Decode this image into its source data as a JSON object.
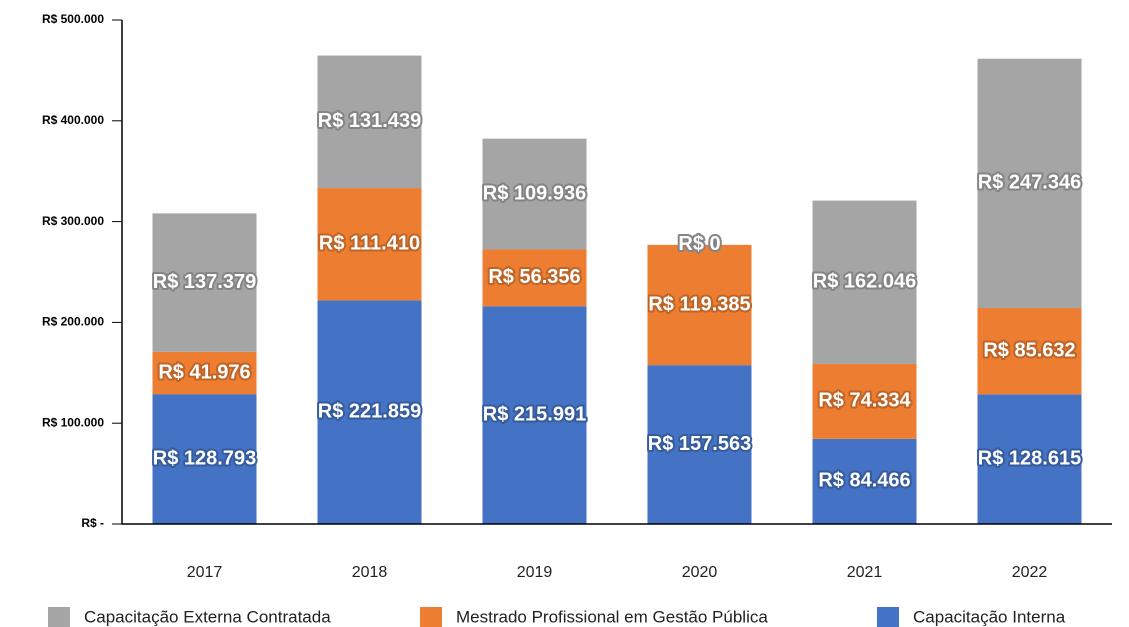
{
  "chart_data": {
    "type": "stacked_bar",
    "categories": [
      "2017",
      "2018",
      "2019",
      "2020",
      "2021",
      "2022"
    ],
    "series": [
      {
        "name": "Capacitação Externa Contratada",
        "color": "#a5a5a5",
        "values": [
          137379,
          131439,
          109936,
          0,
          162046,
          247346
        ],
        "value_labels": [
          "R$ 137.379",
          "R$ 131.439",
          "R$ 109.936",
          "R$ 0",
          "R$ 162.046",
          "R$ 247.346"
        ]
      },
      {
        "name": "Mestrado Profissional em Gestão Pública",
        "color": "#ed7d31",
        "values": [
          41976,
          111410,
          56356,
          119385,
          74334,
          85632
        ],
        "value_labels": [
          "R$ 41.976",
          "R$ 111.410",
          "R$ 56.356",
          "R$ 119.385",
          "R$ 74.334",
          "R$ 85.632"
        ]
      },
      {
        "name": "Capacitação Interna",
        "color": "#4472c4",
        "values": [
          128793,
          221859,
          215991,
          157563,
          84466,
          128615
        ],
        "value_labels": [
          "R$ 128.793",
          "R$ 221.859",
          "R$ 215.991",
          "R$ 157.563",
          "R$ 84.466",
          "R$ 128.615"
        ]
      }
    ],
    "ylim": [
      0,
      500000
    ],
    "yticks": [
      {
        "value": 0,
        "label": "R$ -"
      },
      {
        "value": 100000,
        "label": "R$ 100.000"
      },
      {
        "value": 200000,
        "label": "R$ 200.000"
      },
      {
        "value": 300000,
        "label": "R$ 300.000"
      },
      {
        "value": 400000,
        "label": "R$ 400.000"
      },
      {
        "value": 500000,
        "label": "R$ 500.000"
      }
    ],
    "legend": "bottom"
  }
}
